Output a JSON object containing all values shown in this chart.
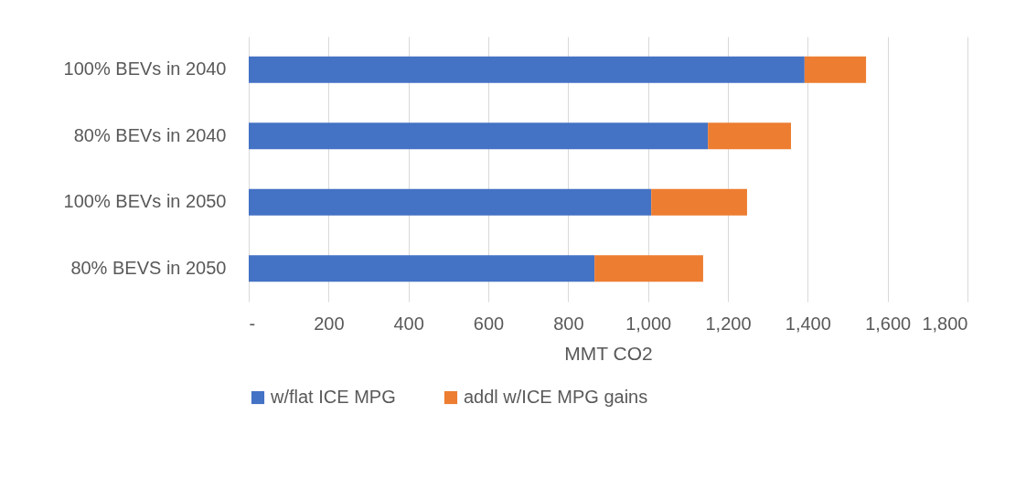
{
  "chart_data": {
    "type": "bar",
    "orientation": "horizontal",
    "stacked": true,
    "categories": [
      "100% BEVs in 2040",
      "80% BEVs in 2040",
      "100% BEVs in 2050",
      "80% BEVS in 2050"
    ],
    "series": [
      {
        "name": "w/flat ICE MPG",
        "color": "#4472c4",
        "values": [
          1392,
          1150,
          1008,
          866
        ]
      },
      {
        "name": "addl w/ICE MPG gains",
        "color": "#ed7d31",
        "values": [
          154,
          208,
          240,
          272
        ]
      }
    ],
    "xlabel": "MMT CO2",
    "xlim": [
      0,
      1800
    ],
    "xticks": [
      {
        "value": 0,
        "label": "-"
      },
      200,
      400,
      600,
      800,
      {
        "value": 1000,
        "label": "1,000"
      },
      {
        "value": 1200,
        "label": "1,200"
      },
      {
        "value": 1400,
        "label": "1,400"
      },
      {
        "value": 1600,
        "label": "1,600"
      },
      {
        "value": 1800,
        "label": "1,800"
      }
    ],
    "grid": "x",
    "legend": "bottom"
  }
}
